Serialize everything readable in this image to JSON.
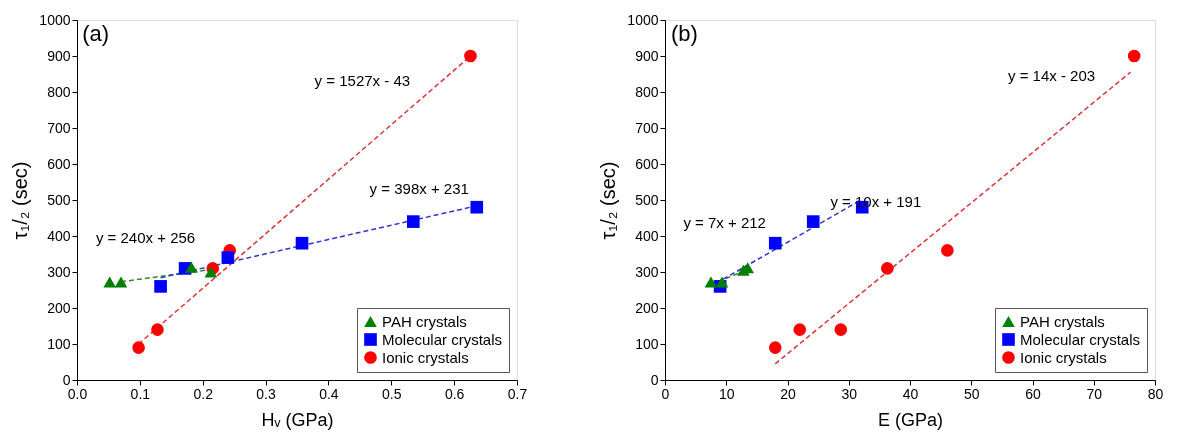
{
  "chart_data": [
    {
      "type": "scatter",
      "xlabel": "Hᵥ (GPa)",
      "ylabel": "τ₁/₂ (sec)",
      "xlim": [
        0,
        0.7
      ],
      "ylim": [
        0,
        1000
      ],
      "xticks": [
        {
          "value": 0,
          "label": "0.0"
        },
        0.1,
        0.2,
        0.3,
        0.4,
        0.5,
        0.6,
        0.7
      ],
      "yticks": [
        0,
        100,
        200,
        300,
        400,
        500,
        600,
        700,
        800,
        900,
        1000
      ],
      "grid": false,
      "legend": "bottom right",
      "series": [
        {
          "name": "PAH crystals",
          "type": "scatter",
          "marker": "triangle",
          "color": "#008000",
          "x": [
            0.052,
            0.07,
            0.182,
            0.213
          ],
          "values": [
            272,
            272,
            313,
            300
          ]
        },
        {
          "name": "Molecular crystals",
          "type": "scatter",
          "marker": "square",
          "color": "#0000ff",
          "x": [
            0.133,
            0.172,
            0.24,
            0.358,
            0.535,
            0.636
          ],
          "values": [
            260,
            310,
            340,
            380,
            440,
            480
          ]
        },
        {
          "name": "Ionic crystals",
          "type": "scatter",
          "marker": "circle",
          "color": "#ff0000",
          "x": [
            0.098,
            0.128,
            0.216,
            0.243,
            0.626
          ],
          "values": [
            90,
            140,
            310,
            360,
            900
          ]
        },
        {
          "type": "line",
          "line_style": "dashed",
          "color": "#2e8b2e",
          "x": [
            0.07,
            0.213
          ],
          "values": [
            273,
            307
          ]
        },
        {
          "type": "line",
          "line_style": "dashed",
          "color": "#3333cc",
          "x": [
            0.133,
            0.636
          ],
          "values": [
            284,
            484
          ]
        },
        {
          "type": "line",
          "line_style": "dashed",
          "color": "#dd3333",
          "x": [
            0.098,
            0.626
          ],
          "values": [
            100,
            900
          ]
        }
      ],
      "annotations": [
        "(a)",
        "y = 1527x - 43",
        "y = 398x + 231",
        "y = 240x + 256"
      ]
    },
    {
      "type": "scatter",
      "xlabel": "E (GPa)",
      "ylabel": "τ₁/₂ (sec)",
      "xlim": [
        0,
        80
      ],
      "ylim": [
        0,
        1000
      ],
      "xticks": [
        0,
        10,
        20,
        30,
        40,
        50,
        60,
        70,
        80
      ],
      "yticks": [
        0,
        100,
        200,
        300,
        400,
        500,
        600,
        700,
        800,
        900,
        1000
      ],
      "grid": false,
      "legend": "bottom right",
      "series": [
        {
          "name": "PAH crystals",
          "type": "scatter",
          "marker": "triangle",
          "color": "#008000",
          "x": [
            7.5,
            9.3,
            12.8,
            13.5
          ],
          "values": [
            272,
            272,
            305,
            312
          ]
        },
        {
          "name": "Molecular crystals",
          "type": "scatter",
          "marker": "square",
          "color": "#0000ff",
          "x": [
            9,
            18,
            24.2,
            32.2
          ],
          "values": [
            260,
            380,
            440,
            480
          ]
        },
        {
          "name": "Ionic crystals",
          "type": "scatter",
          "marker": "circle",
          "color": "#ff0000",
          "x": [
            18,
            22,
            28.7,
            36.3,
            46.1,
            76.6
          ],
          "values": [
            90,
            140,
            140,
            310,
            360,
            900
          ]
        },
        {
          "type": "line",
          "line_style": "dashed",
          "color": "#2e8b2e",
          "x": [
            7.5,
            13.5
          ],
          "values": [
            265,
            307
          ]
        },
        {
          "type": "line",
          "line_style": "dashed",
          "color": "#3333cc",
          "x": [
            9.5,
            32
          ],
          "values": [
            280,
            500
          ]
        },
        {
          "type": "line",
          "line_style": "dashed",
          "color": "#dd3333",
          "x": [
            18,
            76
          ],
          "values": [
            45,
            855
          ]
        }
      ],
      "annotations": [
        "(b)",
        "y = 14x - 203",
        "y = 10x + 191",
        "y = 7x + 212"
      ]
    }
  ]
}
